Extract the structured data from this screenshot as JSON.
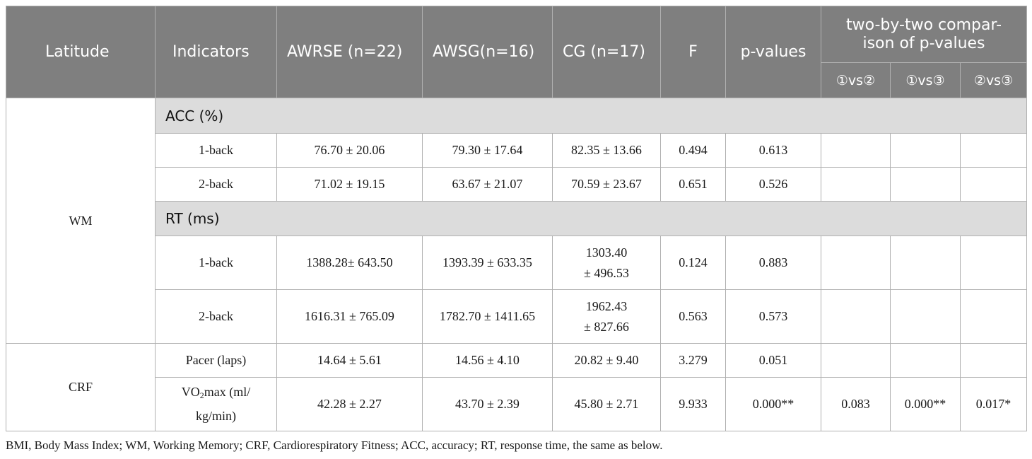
{
  "header": {
    "latitude": "Latitude",
    "indicators": "Indicators",
    "awrse": "AWRSE (n=22)",
    "awsg": "AWSG(n=16)",
    "cg": "CG (n=17)",
    "f": "F",
    "p_values": "p-values",
    "pairwise_line1": "two-by-two compar-",
    "pairwise_line2": "ison of p-values",
    "c12": "①vs②",
    "c13": "①vs③",
    "c23": "②vs③"
  },
  "wm": {
    "label": "WM",
    "acc_group": "ACC (%)",
    "rt_group": "RT (ms)",
    "acc_rows": [
      {
        "indicator": "1-back",
        "awrse": "76.70 ± 20.06",
        "awsg": "79.30 ± 17.64",
        "cg": "82.35 ± 13.66",
        "f": "0.494",
        "p": "0.613"
      },
      {
        "indicator": "2-back",
        "awrse": "71.02 ± 19.15",
        "awsg": "63.67 ± 21.07",
        "cg": "70.59 ± 23.67",
        "f": "0.651",
        "p": "0.526"
      }
    ],
    "rt_rows": [
      {
        "indicator": "1-back",
        "awrse": "1388.28± 643.50",
        "awsg": "1393.39 ± 633.35",
        "cg_line1": "1303.40",
        "cg_line2": "± 496.53",
        "f": "0.124",
        "p": "0.883"
      },
      {
        "indicator": "2-back",
        "awrse": "1616.31 ± 765.09",
        "awsg": "1782.70 ± 1411.65",
        "cg_line1": "1962.43",
        "cg_line2": "± 827.66",
        "f": "0.563",
        "p": "0.573"
      }
    ]
  },
  "crf": {
    "label": "CRF",
    "pacer": {
      "indicator": "Pacer (laps)",
      "awrse": "14.64 ± 5.61",
      "awsg": "14.56 ± 4.10",
      "cg": "20.82 ± 9.40",
      "f": "3.279",
      "p": "0.051"
    },
    "vo2": {
      "ind_prefix": "VO",
      "ind_sub": "2",
      "ind_suffix": "max (ml/",
      "ind_line2": "kg/min)",
      "awrse": "42.28 ± 2.27",
      "awsg": "43.70 ± 2.39",
      "cg": "45.80 ± 2.71",
      "f": "9.933",
      "p": "0.000**",
      "c12": "0.083",
      "c13": "0.000**",
      "c23": "0.017*"
    }
  },
  "footnote": "BMI, Body Mass Index; WM, Working Memory; CRF, Cardiorespiratory Fitness; ACC, accuracy; RT, response time, the same as below."
}
